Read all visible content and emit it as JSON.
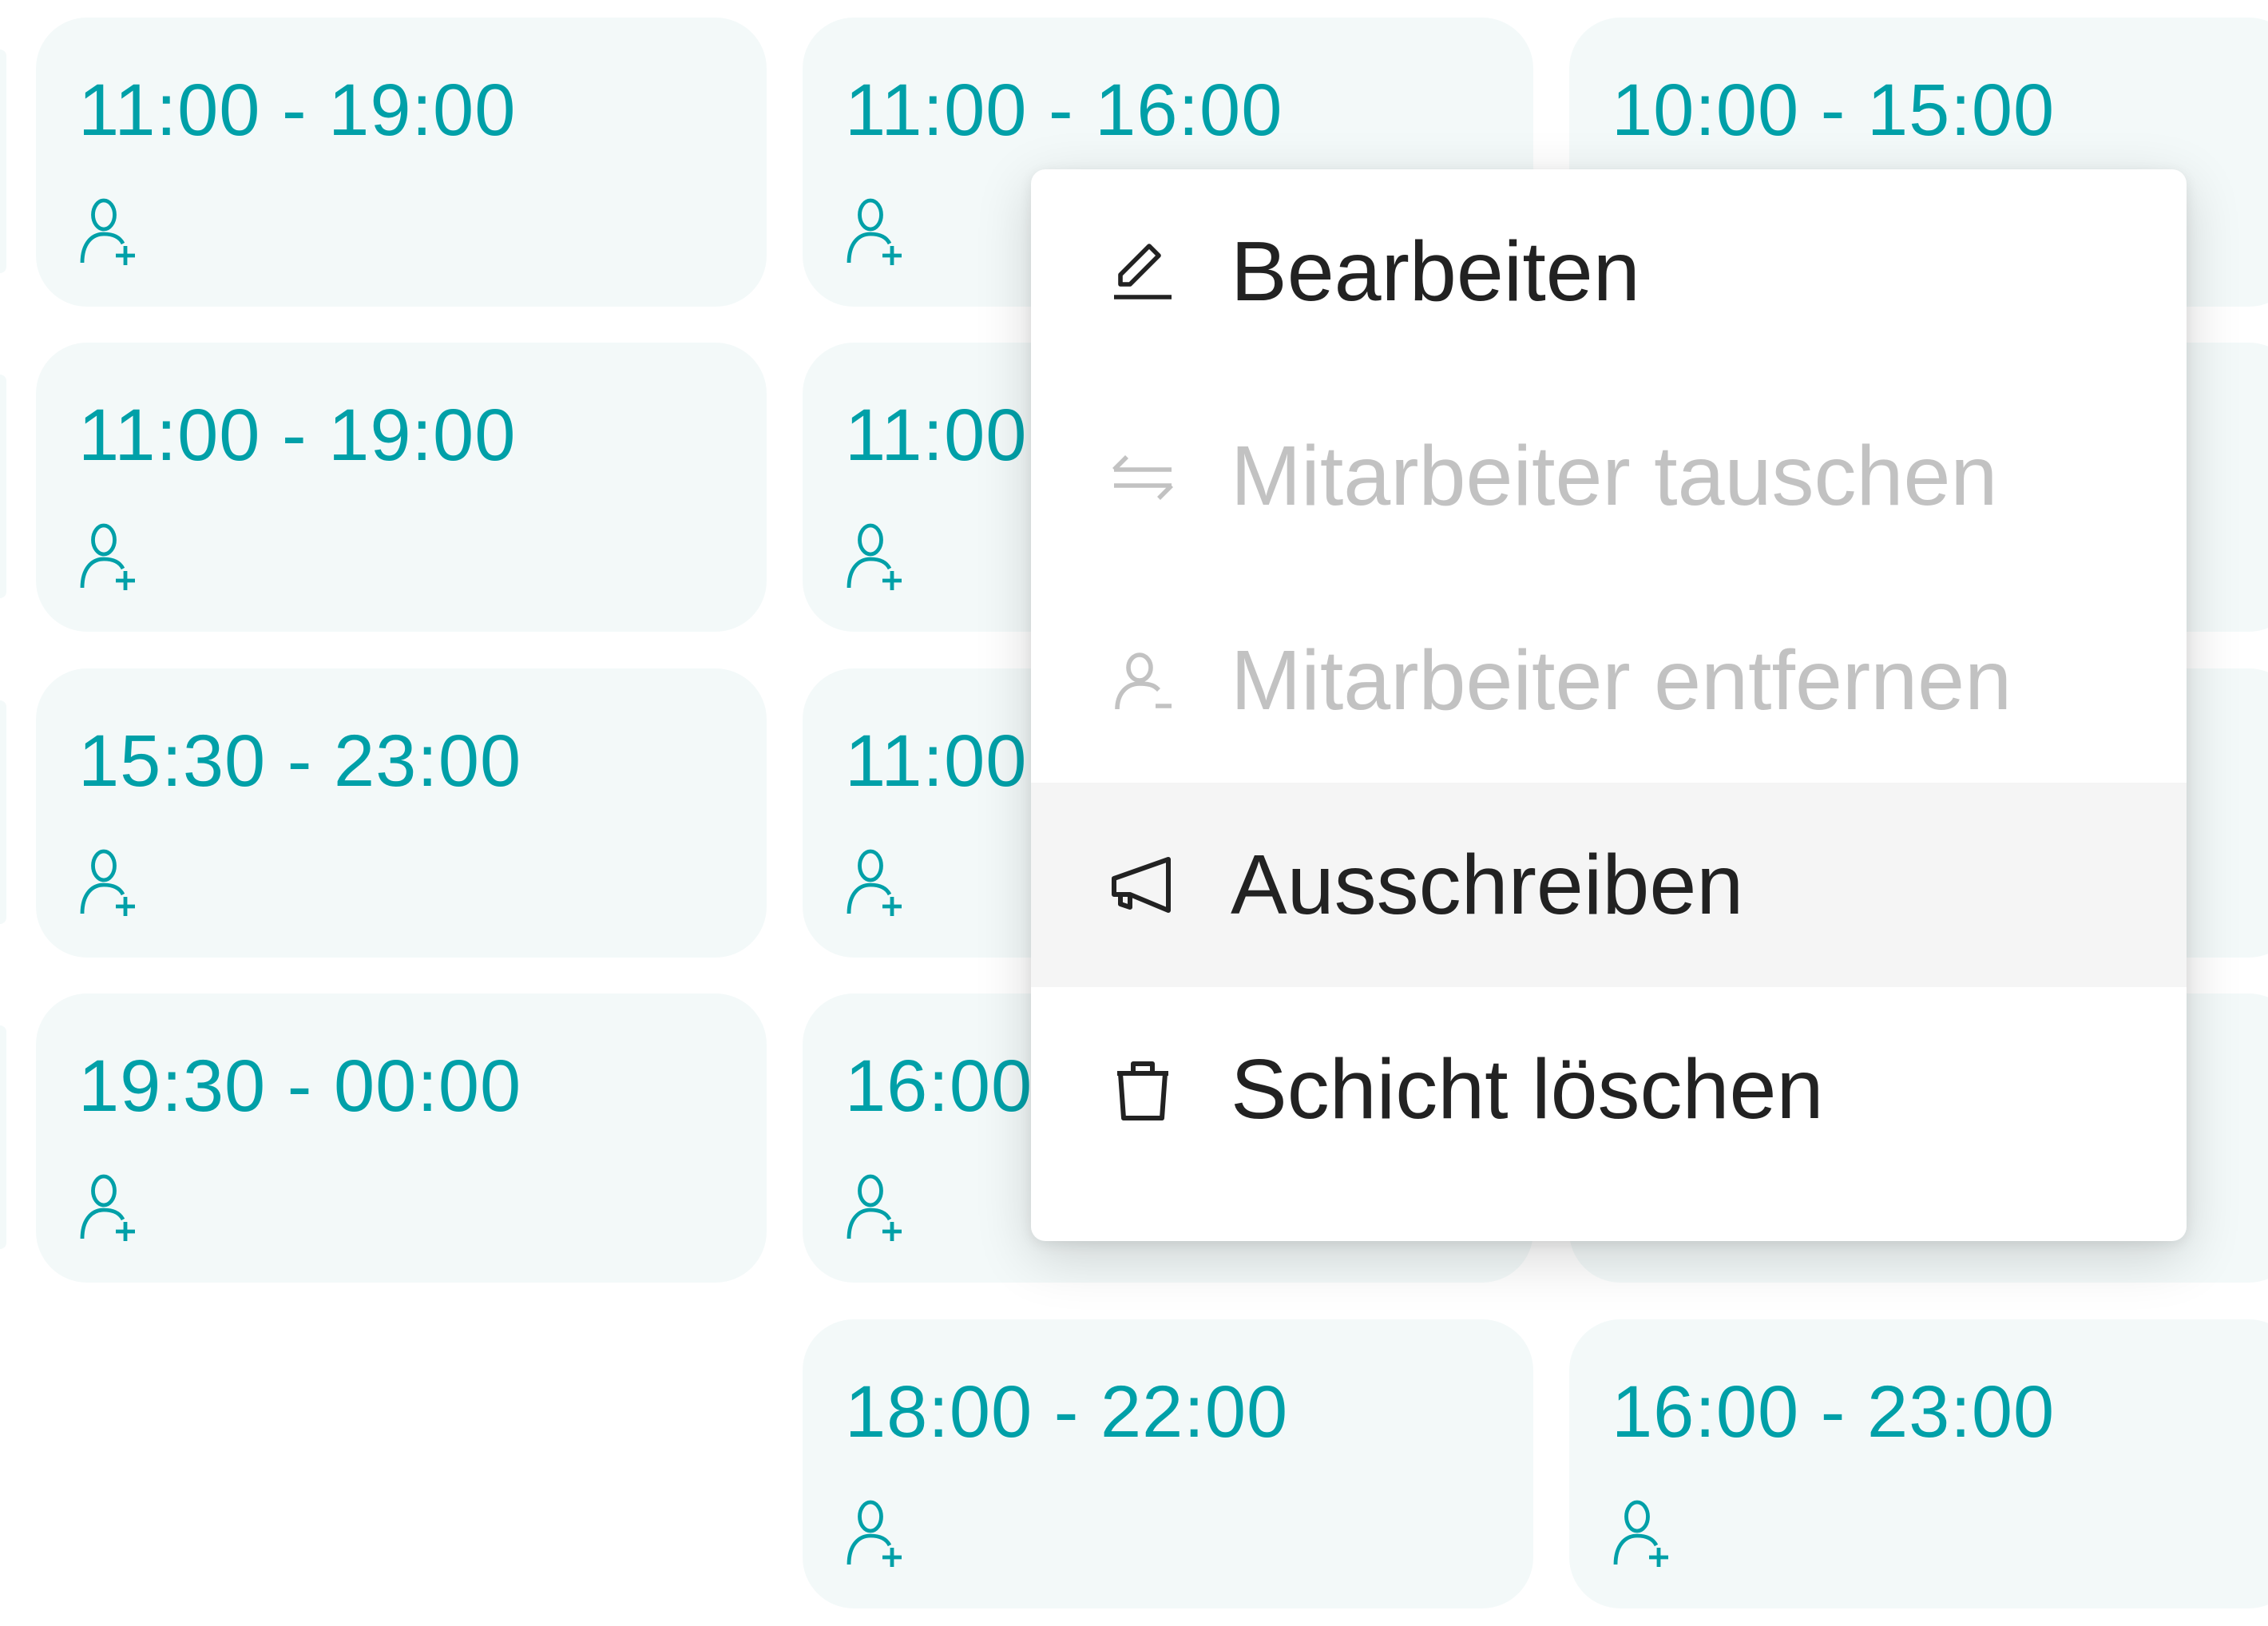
{
  "colors": {
    "accent": "#00a0a8",
    "card_bg": "#f3f9f9",
    "menu_text": "#222222",
    "menu_disabled": "#c2c2c2",
    "menu_highlight": "#f5f5f5"
  },
  "columns": [
    {
      "shifts": [
        {
          "time": "11:00 - 19:00"
        },
        {
          "time": "11:00 - 19:00"
        },
        {
          "time": "15:30 - 23:00"
        },
        {
          "time": "19:30 - 00:00"
        }
      ]
    },
    {
      "shifts": [
        {
          "time": "11:00 - 16:00"
        },
        {
          "time": "11:00"
        },
        {
          "time": "11:00"
        },
        {
          "time": "16:00"
        },
        {
          "time": "18:00 - 22:00"
        }
      ]
    },
    {
      "shifts": [
        {
          "time": "10:00 - 15:00"
        },
        {
          "time": ""
        },
        {
          "time": ""
        },
        {
          "time": ""
        },
        {
          "time": "16:00 - 23:00"
        }
      ]
    }
  ],
  "assign_icon": "user-plus-icon",
  "context_menu": {
    "items": [
      {
        "label": "Bearbeiten",
        "icon": "pencil-icon",
        "disabled": false
      },
      {
        "label": "Mitarbeiter tauschen",
        "icon": "swap-icon",
        "disabled": true
      },
      {
        "label": "Mitarbeiter entfernen",
        "icon": "user-minus-icon",
        "disabled": true
      },
      {
        "label": "Ausschreiben",
        "icon": "megaphone-icon",
        "disabled": false,
        "highlighted": true
      },
      {
        "label": "Schicht löschen",
        "icon": "trash-icon",
        "disabled": false
      }
    ]
  }
}
